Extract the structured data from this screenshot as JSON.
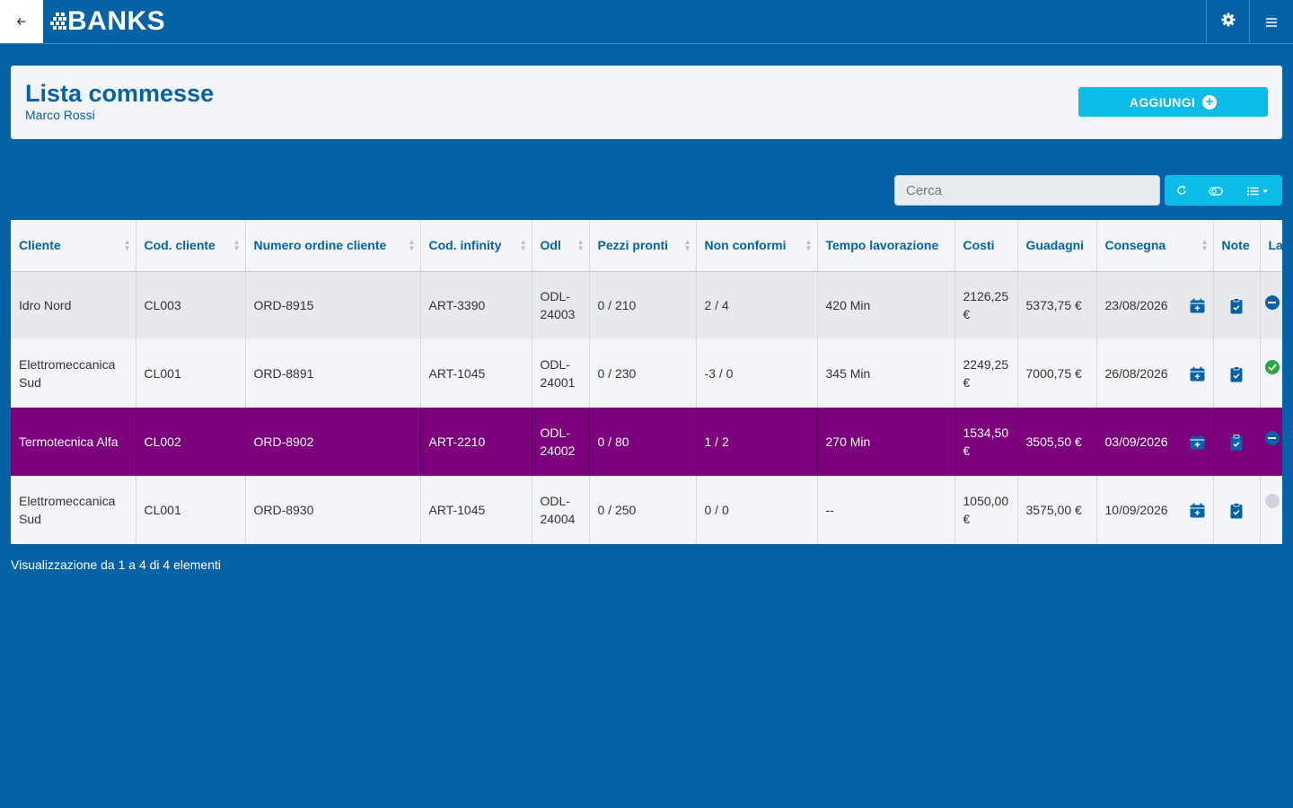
{
  "app": {
    "logo_text": "BANKS"
  },
  "header": {
    "title": "Lista commesse",
    "subtitle": "Marco Rossi",
    "add_label": "AGGIUNGI"
  },
  "search": {
    "placeholder": "Cerca"
  },
  "table": {
    "columns": [
      "Cliente",
      "Cod. cliente",
      "Numero ordine cliente",
      "Cod. infinity",
      "Odl",
      "Pezzi pronti",
      "Non conformi",
      "Tempo lavorazione",
      "Costi",
      "Guadagni",
      "Consegna",
      "Note",
      "La"
    ],
    "rows": [
      {
        "cliente": "Idro Nord",
        "cod_cliente": "CL003",
        "numero_ordine": "ORD-8915",
        "cod_infinity": "ART-3390",
        "odl": "ODL-24003",
        "pezzi_pronti": "0 / 210",
        "non_conformi": "2 / 4",
        "tempo": "420 Min",
        "costi": "2126,25 €",
        "guadagni": "5373,75 €",
        "consegna": "23/08/2026",
        "status": "in-progress",
        "style": "grey"
      },
      {
        "cliente": "Elettromeccanica Sud",
        "cod_cliente": "CL001",
        "numero_ordine": "ORD-8891",
        "cod_infinity": "ART-1045",
        "odl": "ODL-24001",
        "pezzi_pronti": "0 / 230",
        "non_conformi": "-3 / 0",
        "tempo": "345 Min",
        "costi": "2249,25 €",
        "guadagni": "7000,75 €",
        "consegna": "26/08/2026",
        "status": "done",
        "style": "white"
      },
      {
        "cliente": "Termotecnica Alfa",
        "cod_cliente": "CL002",
        "numero_ordine": "ORD-8902",
        "cod_infinity": "ART-2210",
        "odl": "ODL-24002",
        "pezzi_pronti": "0 / 80",
        "non_conformi": "1 / 2",
        "tempo": "270 Min",
        "costi": "1534,50 €",
        "guadagni": "3505,50 €",
        "consegna": "03/09/2026",
        "status": "in-progress",
        "style": "purple"
      },
      {
        "cliente": "Elettromeccanica Sud",
        "cod_cliente": "CL001",
        "numero_ordine": "ORD-8930",
        "cod_infinity": "ART-1045",
        "odl": "ODL-24004",
        "pezzi_pronti": "0 / 250",
        "non_conformi": "0 / 0",
        "tempo": "--",
        "costi": "1050,00 €",
        "guadagni": "3575,00 €",
        "consegna": "10/09/2026",
        "status": "none",
        "style": "white"
      }
    ]
  },
  "footer": {
    "info": "Visualizzazione da 1 a 4 di 4 elementi"
  },
  "colors": {
    "brand_blue": "#0563a5",
    "accent_cyan": "#0cbce6",
    "highlight_purple": "#7c007c",
    "status_green": "#28a745",
    "status_blue": "#0563a5",
    "status_grey": "#d0d4da"
  },
  "icons": {
    "back": "arrow-left-icon",
    "settings": "gear-icon",
    "menu": "hamburger-icon",
    "add": "plus-circle-icon",
    "refresh": "refresh-icon",
    "toggle": "toggle-icon",
    "columns": "list-columns-icon",
    "calendar": "calendar-plus-icon",
    "note": "clipboard-check-icon"
  }
}
